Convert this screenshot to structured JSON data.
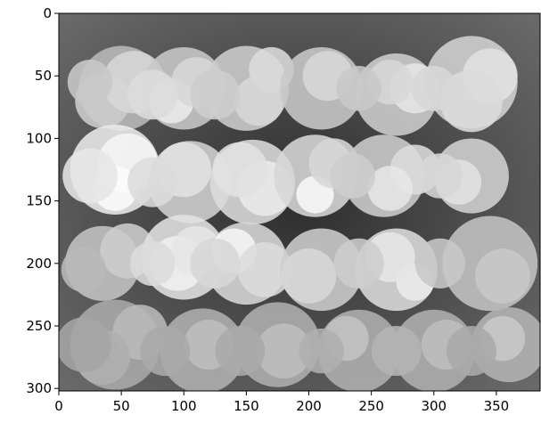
{
  "figure": {
    "kind": "grayscale image display",
    "image_description": "blobs of overlapping light-gray circles arranged in four rows on a dark background",
    "x_axis": {
      "ticks": [
        "0",
        "50",
        "100",
        "150",
        "200",
        "250",
        "300",
        "350"
      ],
      "range": [
        0,
        385
      ]
    },
    "y_axis": {
      "ticks": [
        "0",
        "50",
        "100",
        "150",
        "200",
        "250",
        "300"
      ],
      "range": [
        0,
        302
      ]
    }
  }
}
